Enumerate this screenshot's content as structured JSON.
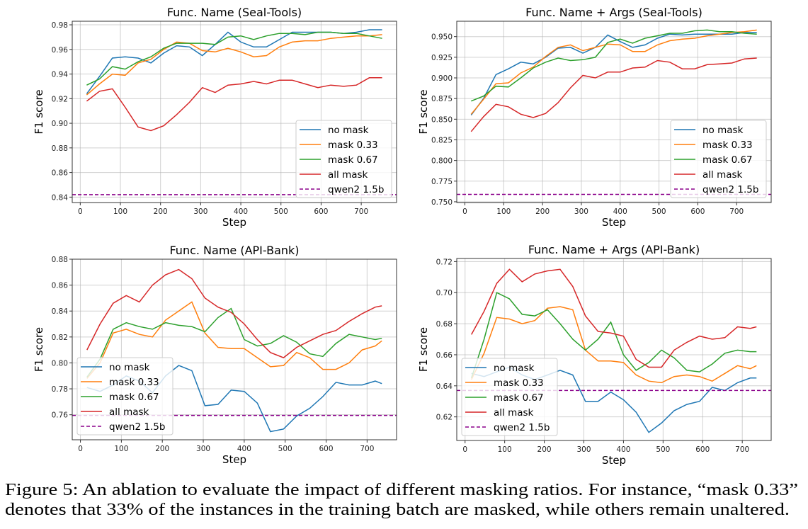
{
  "caption": {
    "line1": "Figure 5: An ablation to evaluate the impact of different masking ratios. For instance, “mask 0.33”",
    "line2": "denotes that 33% of the instances in the training batch are masked, while others remain unaltered."
  },
  "colors": {
    "no mask": "#1f77b4",
    "mask 0.33": "#ff7f0e",
    "mask 0.67": "#2ca02c",
    "all mask": "#d62728",
    "qwen2 1.5b": "#8b008b"
  },
  "chart_data": [
    {
      "type": "line",
      "title": "Func. Name (Seal-Tools)",
      "xlabel": "Step",
      "ylabel": "F1 score",
      "xlim": [
        -20,
        788
      ],
      "ylim": [
        0.8356,
        0.9829
      ],
      "xticks": [
        "0",
        "100",
        "200",
        "300",
        "400",
        "500",
        "600",
        "700"
      ],
      "yticks": [
        "0.84",
        "0.86",
        "0.88",
        "0.90",
        "0.92",
        "0.94",
        "0.96",
        "0.98"
      ],
      "grid": true,
      "legend_position": "lower-right",
      "x": [
        16,
        48,
        80,
        112,
        144,
        176,
        208,
        240,
        272,
        304,
        336,
        368,
        400,
        432,
        464,
        496,
        528,
        560,
        592,
        624,
        656,
        688,
        720,
        752
      ],
      "series": [
        {
          "name": "no mask",
          "values": [
            0.924,
            0.938,
            0.953,
            0.954,
            0.953,
            0.949,
            0.957,
            0.963,
            0.962,
            0.955,
            0.964,
            0.974,
            0.966,
            0.962,
            0.962,
            0.968,
            0.974,
            0.974,
            0.974,
            0.974,
            0.973,
            0.974,
            0.976,
            0.976
          ]
        },
        {
          "name": "mask 0.33",
          "values": [
            0.923,
            0.932,
            0.94,
            0.939,
            0.949,
            0.952,
            0.96,
            0.966,
            0.965,
            0.959,
            0.958,
            0.961,
            0.958,
            0.954,
            0.955,
            0.962,
            0.966,
            0.967,
            0.967,
            0.969,
            0.97,
            0.971,
            0.971,
            0.972
          ]
        },
        {
          "name": "mask 0.67",
          "values": [
            0.931,
            0.936,
            0.946,
            0.944,
            0.95,
            0.954,
            0.961,
            0.965,
            0.965,
            0.965,
            0.964,
            0.97,
            0.971,
            0.968,
            0.971,
            0.973,
            0.973,
            0.972,
            0.974,
            0.974,
            0.973,
            0.973,
            0.971,
            0.969
          ]
        },
        {
          "name": "all mask",
          "values": [
            0.918,
            0.926,
            0.928,
            0.913,
            0.897,
            0.894,
            0.898,
            0.907,
            0.917,
            0.929,
            0.925,
            0.931,
            0.932,
            0.934,
            0.932,
            0.935,
            0.935,
            0.932,
            0.929,
            0.931,
            0.93,
            0.931,
            0.937,
            0.937
          ]
        }
      ],
      "baseline": {
        "name": "qwen2 1.5b",
        "value": 0.842
      }
    },
    {
      "type": "line",
      "title": "Func. Name + Args (Seal-Tools)",
      "xlabel": "Step",
      "ylabel": "F1 score",
      "xlim": [
        -21,
        789
      ],
      "ylim": [
        0.7491,
        0.9686
      ],
      "xticks": [
        "0",
        "100",
        "200",
        "300",
        "400",
        "500",
        "600",
        "700"
      ],
      "yticks": [
        "0.750",
        "0.775",
        "0.800",
        "0.825",
        "0.850",
        "0.875",
        "0.900",
        "0.925",
        "0.950"
      ],
      "grid": true,
      "legend_position": "lower-right",
      "x": [
        16,
        48,
        80,
        112,
        144,
        176,
        208,
        240,
        272,
        304,
        336,
        368,
        400,
        432,
        464,
        496,
        528,
        560,
        592,
        624,
        656,
        688,
        720,
        752
      ],
      "series": [
        {
          "name": "no mask",
          "values": [
            0.855,
            0.875,
            0.904,
            0.911,
            0.919,
            0.917,
            0.925,
            0.936,
            0.937,
            0.93,
            0.937,
            0.952,
            0.944,
            0.937,
            0.94,
            0.948,
            0.953,
            0.952,
            0.953,
            0.953,
            0.953,
            0.953,
            0.955,
            0.955
          ]
        },
        {
          "name": "mask 0.33",
          "values": [
            0.856,
            0.874,
            0.893,
            0.894,
            0.906,
            0.913,
            0.926,
            0.937,
            0.94,
            0.933,
            0.937,
            0.941,
            0.94,
            0.932,
            0.932,
            0.94,
            0.945,
            0.947,
            0.948,
            0.951,
            0.953,
            0.955,
            0.956,
            0.958
          ]
        },
        {
          "name": "mask 0.67",
          "values": [
            0.872,
            0.878,
            0.89,
            0.889,
            0.9,
            0.912,
            0.919,
            0.924,
            0.921,
            0.922,
            0.925,
            0.943,
            0.947,
            0.942,
            0.948,
            0.951,
            0.954,
            0.954,
            0.957,
            0.958,
            0.956,
            0.956,
            0.954,
            0.953
          ]
        },
        {
          "name": "all mask",
          "values": [
            0.835,
            0.853,
            0.868,
            0.865,
            0.856,
            0.852,
            0.857,
            0.87,
            0.888,
            0.903,
            0.9,
            0.907,
            0.907,
            0.912,
            0.913,
            0.921,
            0.919,
            0.911,
            0.911,
            0.916,
            0.917,
            0.918,
            0.923,
            0.924
          ]
        }
      ],
      "baseline": {
        "name": "qwen2 1.5b",
        "value": 0.759
      }
    },
    {
      "type": "line",
      "title": "Func. Name (API-Bank)",
      "xlabel": "Step",
      "ylabel": "F1 score",
      "xlim": [
        -20,
        772
      ],
      "ylim": [
        0.7407,
        0.88
      ],
      "xticks": [
        "0",
        "100",
        "200",
        "300",
        "400",
        "500",
        "600",
        "700"
      ],
      "yticks": [
        "0.76",
        "0.78",
        "0.80",
        "0.82",
        "0.84",
        "0.86",
        "0.88"
      ],
      "grid": true,
      "legend_position": "lower-left",
      "x": [
        16,
        48,
        80,
        112,
        144,
        176,
        208,
        240,
        272,
        304,
        336,
        368,
        400,
        432,
        464,
        496,
        528,
        560,
        592,
        624,
        656,
        688,
        720,
        736
      ],
      "series": [
        {
          "name": "no mask",
          "values": [
            0.781,
            0.778,
            0.783,
            0.79,
            0.786,
            0.777,
            0.79,
            0.798,
            0.794,
            0.767,
            0.768,
            0.779,
            0.778,
            0.769,
            0.747,
            0.749,
            0.759,
            0.765,
            0.774,
            0.785,
            0.783,
            0.783,
            0.786,
            0.784
          ]
        },
        {
          "name": "mask 0.33",
          "values": [
            0.788,
            0.8,
            0.823,
            0.826,
            0.822,
            0.82,
            0.833,
            0.84,
            0.847,
            0.823,
            0.812,
            0.811,
            0.811,
            0.804,
            0.797,
            0.798,
            0.808,
            0.804,
            0.795,
            0.795,
            0.8,
            0.81,
            0.813,
            0.817
          ]
        },
        {
          "name": "mask 0.67",
          "values": [
            0.789,
            0.803,
            0.826,
            0.831,
            0.828,
            0.826,
            0.831,
            0.829,
            0.828,
            0.824,
            0.835,
            0.842,
            0.818,
            0.813,
            0.815,
            0.821,
            0.816,
            0.807,
            0.805,
            0.815,
            0.822,
            0.82,
            0.818,
            0.819
          ]
        },
        {
          "name": "all mask",
          "values": [
            0.81,
            0.83,
            0.846,
            0.852,
            0.847,
            0.86,
            0.868,
            0.872,
            0.865,
            0.85,
            0.843,
            0.839,
            0.83,
            0.818,
            0.808,
            0.804,
            0.812,
            0.817,
            0.822,
            0.825,
            0.832,
            0.838,
            0.843,
            0.844
          ]
        }
      ],
      "baseline": {
        "name": "qwen2 1.5b",
        "value": 0.7595
      }
    },
    {
      "type": "line",
      "title": "Func. Name + Args (API-Bank)",
      "xlabel": "Step",
      "ylabel": "F1 score",
      "xlim": [
        -21,
        773
      ],
      "ylim": [
        0.6048,
        0.722
      ],
      "xticks": [
        "0",
        "100",
        "200",
        "300",
        "400",
        "500",
        "600",
        "700"
      ],
      "yticks": [
        "0.62",
        "0.64",
        "0.66",
        "0.68",
        "0.70",
        "0.72"
      ],
      "grid": true,
      "legend_position": "lower-left",
      "x": [
        16,
        48,
        80,
        112,
        144,
        176,
        208,
        240,
        272,
        304,
        336,
        368,
        400,
        432,
        464,
        496,
        528,
        560,
        592,
        624,
        656,
        688,
        720,
        736
      ],
      "series": [
        {
          "name": "no mask",
          "values": [
            0.648,
            0.646,
            0.649,
            0.652,
            0.647,
            0.644,
            0.647,
            0.65,
            0.647,
            0.63,
            0.63,
            0.636,
            0.631,
            0.623,
            0.61,
            0.616,
            0.624,
            0.628,
            0.63,
            0.639,
            0.637,
            0.642,
            0.645,
            0.645
          ]
        },
        {
          "name": "mask 0.33",
          "values": [
            0.644,
            0.661,
            0.684,
            0.683,
            0.68,
            0.682,
            0.69,
            0.691,
            0.689,
            0.663,
            0.656,
            0.656,
            0.655,
            0.647,
            0.643,
            0.642,
            0.646,
            0.647,
            0.646,
            0.643,
            0.648,
            0.653,
            0.651,
            0.653
          ]
        },
        {
          "name": "mask 0.67",
          "values": [
            0.645,
            0.67,
            0.7,
            0.696,
            0.686,
            0.685,
            0.689,
            0.68,
            0.67,
            0.663,
            0.67,
            0.681,
            0.66,
            0.65,
            0.655,
            0.663,
            0.658,
            0.65,
            0.649,
            0.654,
            0.661,
            0.663,
            0.662,
            0.662
          ]
        },
        {
          "name": "all mask",
          "values": [
            0.673,
            0.688,
            0.706,
            0.715,
            0.707,
            0.712,
            0.714,
            0.715,
            0.704,
            0.685,
            0.675,
            0.674,
            0.672,
            0.657,
            0.652,
            0.652,
            0.663,
            0.668,
            0.672,
            0.67,
            0.671,
            0.678,
            0.677,
            0.678
          ]
        }
      ],
      "baseline": {
        "name": "qwen2 1.5b",
        "value": 0.637
      }
    }
  ]
}
